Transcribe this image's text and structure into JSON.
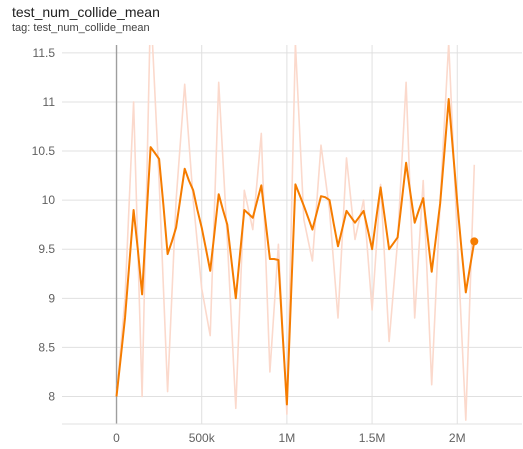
{
  "card": {
    "title": "test_num_collide_mean",
    "tag": "tag: test_num_collide_mean"
  },
  "colors": {
    "smoothed": "#f57c00",
    "raw": "#fbd9cc",
    "grid": "#e0e0e0",
    "axis": "#9e9e9e",
    "tick_text": "#616161"
  },
  "chart_data": {
    "type": "line",
    "title": "",
    "xlabel": "",
    "ylabel": "",
    "xlim": [
      -320000,
      2380000
    ],
    "ylim": [
      7.72,
      11.58
    ],
    "xticks": [
      0,
      500000,
      1000000,
      1500000,
      2000000
    ],
    "xtick_labels": [
      "0",
      "500k",
      "1M",
      "1.5M",
      "2M"
    ],
    "yticks": [
      8,
      8.5,
      9,
      9.5,
      10,
      10.5,
      11,
      11.5
    ],
    "ytick_labels": [
      "8",
      "8.5",
      "9",
      "9.5",
      "10",
      "10.5",
      "11",
      "11.5"
    ],
    "grid": true,
    "legend": "none",
    "series": [
      {
        "role": "raw",
        "x": [
          0,
          50000,
          100000,
          150000,
          200000,
          250000,
          300000,
          350000,
          400000,
          450000,
          500000,
          550000,
          600000,
          650000,
          700000,
          750000,
          800000,
          850000,
          900000,
          950000,
          1000000,
          1050000,
          1100000,
          1150000,
          1200000,
          1250000,
          1300000,
          1350000,
          1400000,
          1450000,
          1500000,
          1550000,
          1600000,
          1650000,
          1700000,
          1750000,
          1800000,
          1850000,
          1900000,
          1950000,
          2000000,
          2050000,
          2100000
        ],
        "y": [
          8.0,
          9.0,
          11.0,
          8.0,
          12.0,
          10.2,
          8.05,
          10.0,
          11.18,
          10.0,
          9.1,
          8.62,
          11.2,
          9.6,
          7.88,
          10.1,
          9.7,
          10.68,
          8.25,
          9.55,
          7.82,
          11.6,
          9.8,
          9.38,
          10.56,
          9.9,
          8.8,
          10.43,
          9.6,
          10.0,
          8.88,
          10.16,
          8.56,
          9.58,
          11.2,
          8.8,
          10.2,
          8.12,
          10.0,
          11.6,
          9.6,
          7.76,
          10.36
        ]
      },
      {
        "role": "smoothed",
        "x": [
          0,
          25000,
          50000,
          75000,
          100000,
          125000,
          150000,
          175000,
          200000,
          225000,
          250000,
          275000,
          300000,
          325000,
          350000,
          375000,
          400000,
          425000,
          450000,
          475000,
          500000,
          525000,
          550000,
          575000,
          600000,
          625000,
          650000,
          675000,
          700000,
          725000,
          750000,
          775000,
          800000,
          825000,
          850000,
          875000,
          900000,
          925000,
          950000,
          975000,
          1000000,
          1025000,
          1050000,
          1075000,
          1100000,
          1125000,
          1150000,
          1175000,
          1200000,
          1225000,
          1250000,
          1275000,
          1300000,
          1325000,
          1350000,
          1375000,
          1400000,
          1425000,
          1450000,
          1475000,
          1500000,
          1525000,
          1550000,
          1575000,
          1600000,
          1625000,
          1650000,
          1675000,
          1700000,
          1725000,
          1750000,
          1775000,
          1800000,
          1825000,
          1850000,
          1875000,
          1900000,
          1925000,
          1950000,
          1975000,
          2000000,
          2025000,
          2050000,
          2075000,
          2100000
        ],
        "y": [
          8.0,
          8.4,
          8.8,
          9.35,
          9.9,
          9.5,
          9.04,
          9.8,
          10.54,
          10.48,
          10.42,
          9.95,
          9.45,
          9.58,
          9.72,
          10.02,
          10.32,
          10.2,
          10.1,
          9.9,
          9.72,
          9.5,
          9.28,
          9.67,
          10.06,
          9.9,
          9.75,
          9.38,
          9.0,
          9.45,
          9.9,
          9.86,
          9.82,
          9.99,
          10.15,
          9.78,
          9.4,
          9.4,
          9.39,
          8.64,
          7.92,
          9.04,
          10.16,
          10.05,
          9.94,
          9.82,
          9.7,
          9.87,
          10.04,
          10.03,
          10.0,
          9.76,
          9.53,
          9.71,
          9.89,
          9.83,
          9.77,
          9.83,
          9.89,
          9.7,
          9.5,
          9.82,
          10.13,
          9.81,
          9.5,
          9.56,
          9.62,
          10.0,
          10.38,
          10.07,
          9.77,
          9.9,
          10.02,
          9.65,
          9.27,
          9.62,
          9.97,
          10.5,
          11.03,
          10.5,
          9.97,
          9.5,
          9.06,
          9.32,
          9.58
        ]
      }
    ]
  }
}
